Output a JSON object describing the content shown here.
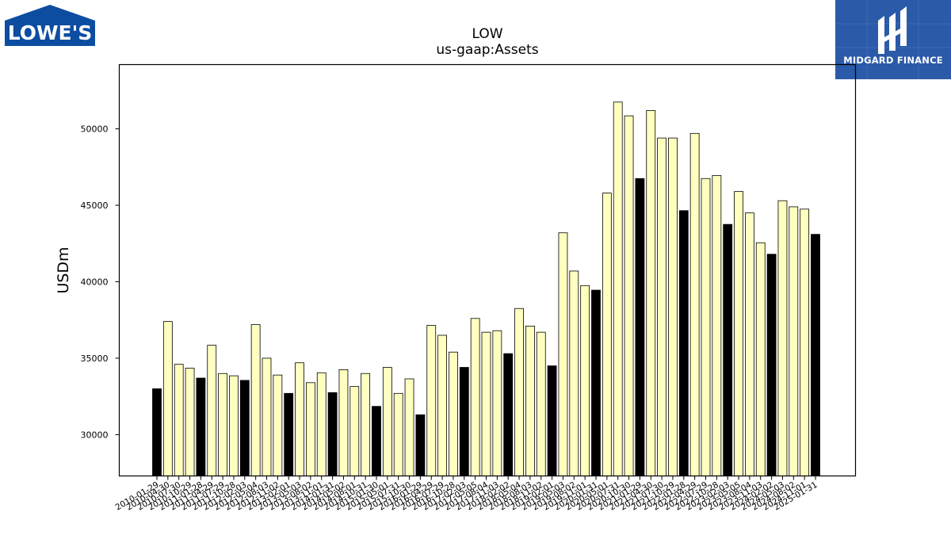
{
  "logos": {
    "left_text": "LOWE'S",
    "right_text": "MIDGARD FINANCE"
  },
  "colors": {
    "bar_highlight": "#000000",
    "bar_default": "#ffffc0",
    "bar_edge": "#000000",
    "brand_right_bg": "#2b5aa8",
    "brand_left_bg": "#0c4da2"
  },
  "chart_data": {
    "type": "bar",
    "title": "LOW",
    "subtitle": "us-gaap:Assets",
    "ylabel": "USDm",
    "xlabel": "",
    "ylim": [
      27300,
      54200
    ],
    "yticks": [
      30000,
      35000,
      40000,
      45000,
      50000
    ],
    "grid": false,
    "legend": "none",
    "categories": [
      "2010-01-29",
      "2010-04-30",
      "2010-07-30",
      "2010-10-29",
      "2011-01-28",
      "2011-04-29",
      "2011-07-29",
      "2011-10-28",
      "2012-02-03",
      "2012-05-04",
      "2012-08-03",
      "2012-11-02",
      "2013-02-01",
      "2013-05-03",
      "2013-08-02",
      "2013-11-01",
      "2014-01-31",
      "2014-05-02",
      "2014-08-01",
      "2014-10-31",
      "2015-01-30",
      "2015-05-01",
      "2015-07-31",
      "2015-10-30",
      "2016-01-29",
      "2016-04-29",
      "2016-07-29",
      "2016-10-28",
      "2017-02-03",
      "2017-05-05",
      "2017-08-04",
      "2017-11-03",
      "2018-02-02",
      "2018-05-04",
      "2018-08-03",
      "2018-11-02",
      "2019-02-01",
      "2019-05-03",
      "2019-08-02",
      "2019-11-01",
      "2020-01-31",
      "2020-05-01",
      "2020-07-31",
      "2020-10-30",
      "2021-01-29",
      "2021-04-30",
      "2021-07-30",
      "2021-10-29",
      "2022-01-28",
      "2022-04-29",
      "2022-07-29",
      "2022-10-28",
      "2023-02-03",
      "2023-05-05",
      "2023-08-04",
      "2023-11-03",
      "2024-02-02",
      "2024-05-03",
      "2024-08-02",
      "2024-11-01",
      "2025-01-31"
    ],
    "values": [
      33000,
      37400,
      34600,
      34350,
      33700,
      35850,
      34000,
      33850,
      33550,
      37200,
      35000,
      33900,
      32700,
      34700,
      33400,
      34050,
      32750,
      34250,
      33150,
      34000,
      31850,
      34400,
      32700,
      33650,
      31300,
      37150,
      36500,
      35400,
      34400,
      37600,
      36700,
      36800,
      35300,
      38250,
      37100,
      36700,
      34500,
      43200,
      40700,
      39750,
      39450,
      45800,
      51750,
      50850,
      46750,
      51200,
      49400,
      49400,
      44650,
      49700,
      46750,
      46950,
      43750,
      45900,
      44500,
      42550,
      41800,
      45300,
      44900,
      44750,
      43100
    ],
    "highlight_indices": [
      0,
      4,
      8,
      12,
      16,
      20,
      24,
      28,
      32,
      36,
      40,
      44,
      48,
      52,
      56,
      60
    ],
    "xtick_labels_shown": [
      "2010-01-29",
      "2010-04-30",
      "2010-07-30",
      "2010-10-29",
      "2011-01-28",
      "2011-04-29",
      "2011-07-29",
      "2011-10-28",
      "2012-02-03",
      "2012-05-04",
      "2012-08-03",
      "2012-11-02",
      "2013-02-01",
      "2013-05-03",
      "2013-08-02",
      "2013-11-01",
      "2014-01-31",
      "2014-05-02",
      "2014-08-01",
      "2014-10-31",
      "2015-01-30",
      "2015-05-01",
      "2015-07-31",
      "2015-10-30",
      "2016-01-29",
      "2016-04-29",
      "2016-07-29",
      "2016-10-28",
      "2017-02-03",
      "2017-05-05",
      "2017-08-04",
      "2017-11-03",
      "2018-02-02",
      "2018-05-04",
      "2018-08-03",
      "2018-11-02",
      "2019-02-01",
      "2019-05-03",
      "2019-08-02",
      "2019-11-01",
      "2020-01-31",
      "2020-05-01",
      "2020-07-31",
      "2020-10-30",
      "2021-01-29",
      "2021-04-30",
      "2021-07-30",
      "2021-10-29",
      "2022-01-28",
      "2022-04-29",
      "2022-07-29",
      "2022-10-28",
      "2023-02-03",
      "2023-05-05",
      "2023-08-04",
      "2023-11-03",
      "2024-02-02",
      "2024-05-03",
      "2024-08-02",
      "2024-11-01",
      "2025-01-31"
    ]
  }
}
